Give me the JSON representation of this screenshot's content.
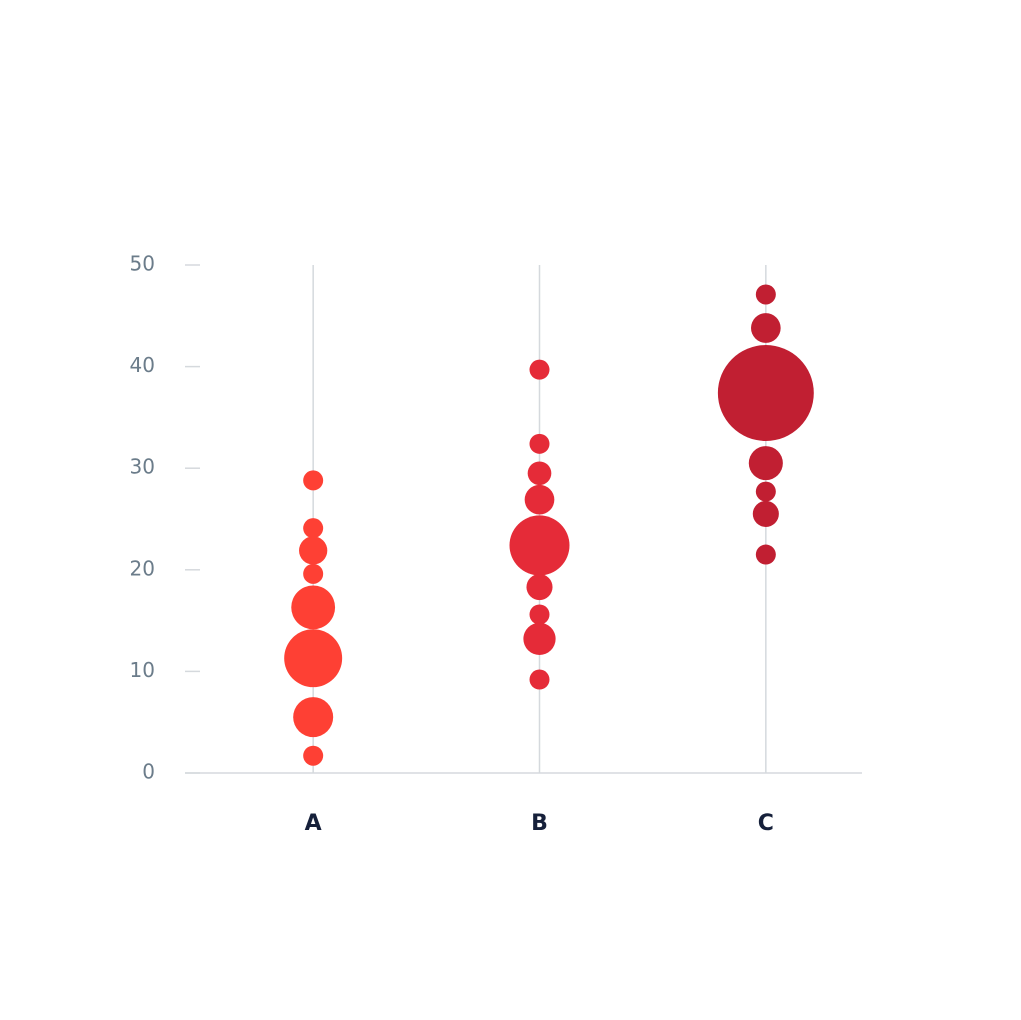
{
  "chart_data": {
    "type": "bubble",
    "categories": [
      "A",
      "B",
      "C"
    ],
    "series": [
      {
        "color": "#fe4034",
        "values": [
          28.8,
          24.1,
          21.9,
          19.6,
          16.3,
          11.3,
          5.5,
          1.7
        ],
        "sizes": [
          10,
          10,
          20,
          10,
          48,
          84,
          40,
          10
        ]
      },
      {
        "color": "#e52b38",
        "values": [
          39.7,
          32.4,
          29.5,
          26.9,
          22.4,
          18.3,
          15.6,
          13.2,
          9.2
        ],
        "sizes": [
          10,
          10,
          14,
          22,
          90,
          17,
          10,
          26,
          10
        ]
      },
      {
        "color": "#c11f32",
        "values": [
          47.1,
          43.8,
          37.4,
          30.5,
          27.7,
          25.5,
          21.5
        ],
        "sizes": [
          10,
          22,
          230,
          29,
          10,
          17,
          10
        ]
      }
    ],
    "ylim": [
      0,
      50
    ],
    "yticks": [
      0,
      10,
      20,
      30,
      40,
      50
    ]
  }
}
